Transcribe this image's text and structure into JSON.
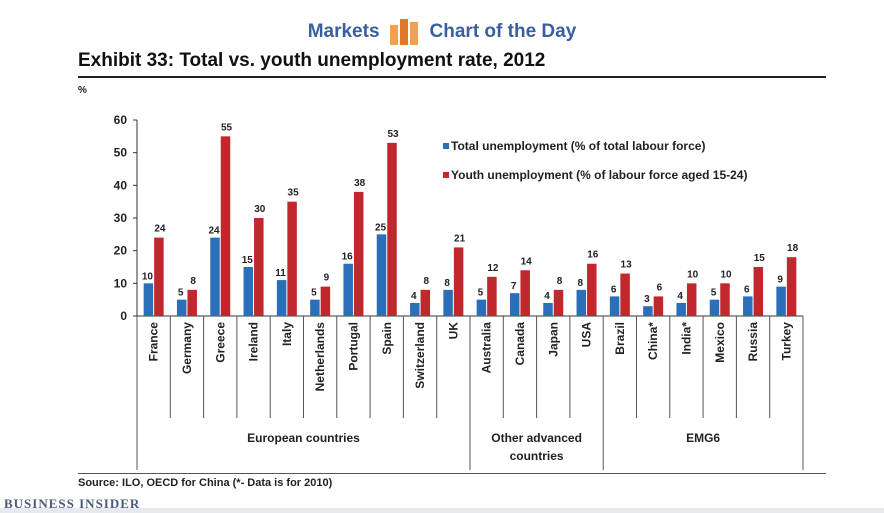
{
  "header": {
    "left_label": "Markets",
    "right_label": "Chart of the Day",
    "logo_icon": "bar-chart-icon"
  },
  "exhibit_title": "Exhibit 33: Total vs. youth unemployment rate, 2012",
  "source": "Source: ILO, OECD for China (*- Data is for 2010)",
  "brand": "BUSINESS INSIDER",
  "chart_data": {
    "type": "bar",
    "title": "",
    "ylabel": "%",
    "ylim": [
      0,
      60
    ],
    "yticks": [
      0,
      10,
      20,
      30,
      40,
      50,
      60
    ],
    "grid": false,
    "legend_position": "top-right",
    "categories": [
      "France",
      "Germany",
      "Greece",
      "Ireland",
      "Italy",
      "Netherlands",
      "Portugal",
      "Spain",
      "Switzerland",
      "UK",
      "Australia",
      "Canada",
      "Japan",
      "USA",
      "Brazil",
      "China*",
      "India*",
      "Mexico",
      "Russia",
      "Turkey"
    ],
    "groups": [
      {
        "label": "European countries",
        "start": 0,
        "end": 9
      },
      {
        "label": "Other advanced countries",
        "lines": [
          "Other advanced",
          "countries"
        ],
        "start": 10,
        "end": 13
      },
      {
        "label": "EMG6",
        "start": 14,
        "end": 19
      }
    ],
    "series": [
      {
        "name": "Total unemployment (% of total labour force)",
        "color": "#2a6fb8",
        "values": [
          10,
          5,
          24,
          15,
          11,
          5,
          16,
          25,
          4,
          8,
          5,
          7,
          4,
          8,
          6,
          3,
          4,
          5,
          6,
          9
        ]
      },
      {
        "name": "Youth unemployment (% of labour force aged 15-24)",
        "color": "#c0282d",
        "values": [
          24,
          8,
          55,
          30,
          35,
          9,
          38,
          53,
          8,
          21,
          12,
          14,
          8,
          16,
          13,
          6,
          10,
          10,
          15,
          18
        ]
      }
    ]
  }
}
